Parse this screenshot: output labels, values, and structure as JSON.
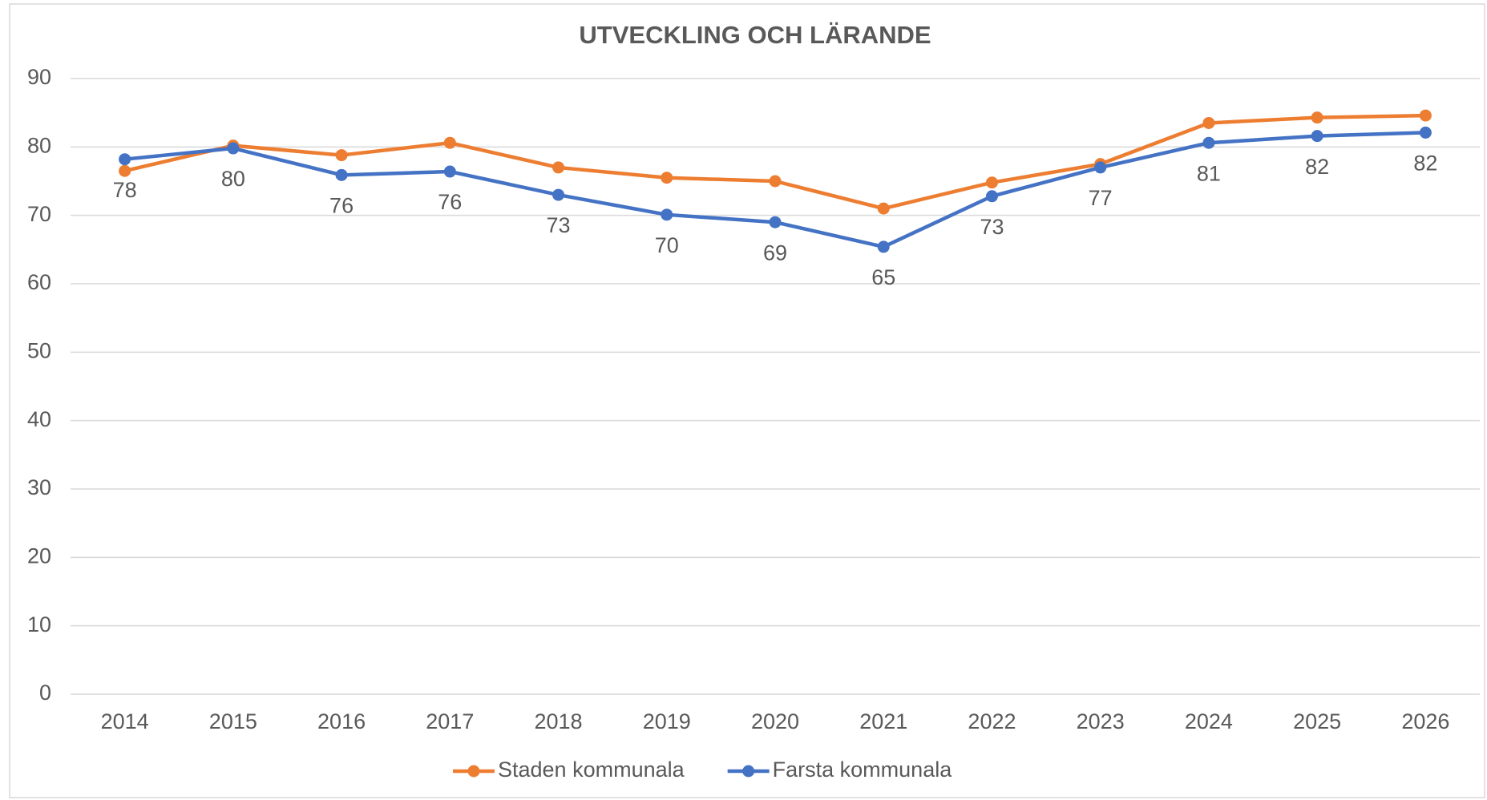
{
  "chart_data": {
    "type": "line",
    "title": "UTVECKLING OCH LÄRANDE",
    "categories": [
      "2014",
      "2015",
      "2016",
      "2017",
      "2018",
      "2019",
      "2020",
      "2021",
      "2022",
      "2023",
      "2024",
      "2025",
      "2026"
    ],
    "series": [
      {
        "name": "Staden kommunala",
        "color": "#ed7d31",
        "values": [
          76.5,
          80.2,
          78.8,
          80.6,
          77.0,
          75.5,
          75.0,
          71.0,
          74.8,
          77.5,
          83.5,
          84.3,
          84.6
        ]
      },
      {
        "name": "Farsta kommunala",
        "color": "#4472c4",
        "values": [
          78.2,
          79.8,
          75.9,
          76.4,
          73.0,
          70.1,
          69.0,
          65.4,
          72.8,
          77.0,
          80.6,
          81.6,
          82.1
        ],
        "value_labels": [
          "78",
          "80",
          "76",
          "76",
          "73",
          "70",
          "69",
          "65",
          "73",
          "77",
          "81",
          "82",
          "82"
        ]
      }
    ],
    "ylim": [
      0,
      90
    ],
    "yticks": [
      0,
      10,
      20,
      30,
      40,
      50,
      60,
      70,
      80,
      90
    ],
    "grid": true,
    "legend": "bottom"
  }
}
